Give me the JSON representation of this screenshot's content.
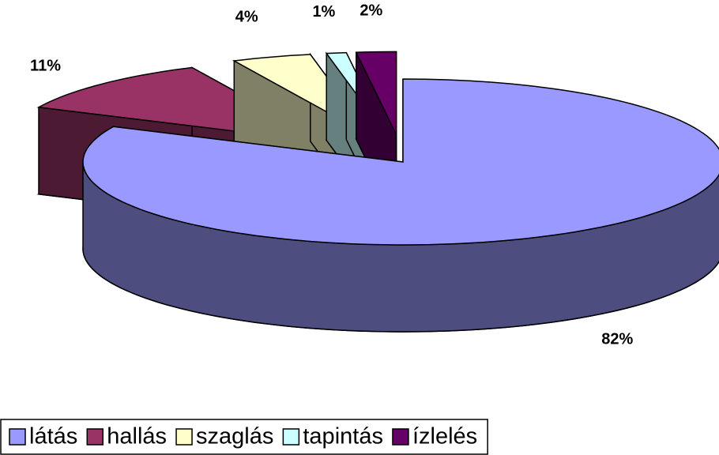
{
  "chart_data": {
    "type": "pie3d",
    "categories": [
      "látás",
      "hallás",
      "szaglás",
      "tapintás",
      "ízlelés"
    ],
    "values": [
      82,
      11,
      4,
      1,
      2
    ],
    "value_labels": [
      "82%",
      "11%",
      "4%",
      "1%",
      "2%"
    ],
    "colors": [
      "#9999ff",
      "#993366",
      "#ffffcc",
      "#ccffff",
      "#660066"
    ],
    "legend": "bottom"
  }
}
